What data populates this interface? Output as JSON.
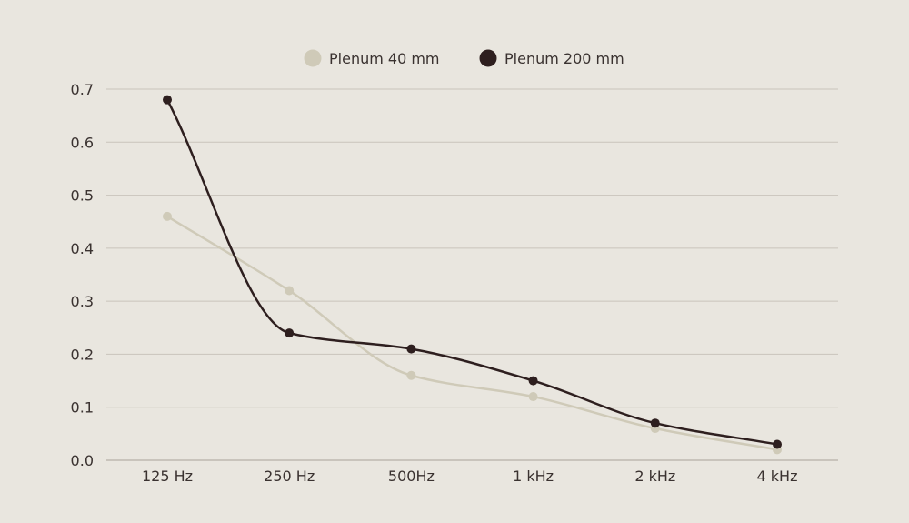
{
  "chart_data": {
    "type": "line",
    "categories": [
      "125 Hz",
      "250 Hz",
      "500Hz",
      "1 kHz",
      "2 kHz",
      "4 kHz"
    ],
    "series": [
      {
        "name": "Plenum 40 mm",
        "color": "#cfcab8",
        "values": [
          0.46,
          0.32,
          0.16,
          0.12,
          0.06,
          0.02
        ]
      },
      {
        "name": "Plenum 200 mm",
        "color": "#2e1f1f",
        "values": [
          0.68,
          0.24,
          0.21,
          0.15,
          0.07,
          0.03
        ]
      }
    ],
    "yticks": [
      "0.0",
      "0.1",
      "0.2",
      "0.3",
      "0.4",
      "0.5",
      "0.6",
      "0.7"
    ],
    "ylim": [
      0,
      0.7
    ],
    "grid": true,
    "legend_position": "top-center",
    "title": "",
    "xlabel": "",
    "ylabel": ""
  }
}
